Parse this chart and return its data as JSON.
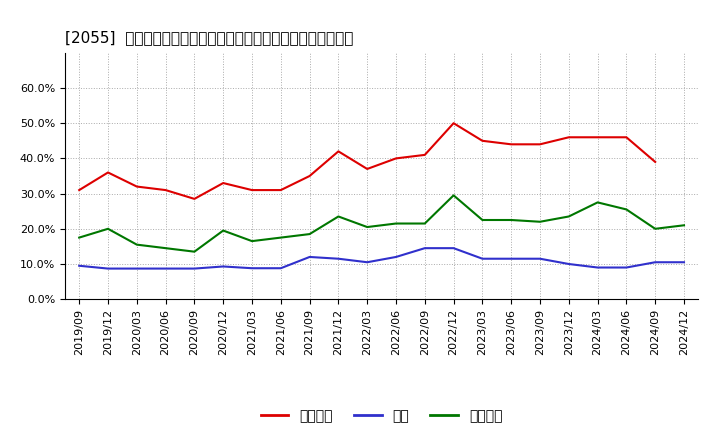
{
  "title": "[2055]  売上債権、在庫、買入債務の総資産に対する比率の推移",
  "ylim": [
    0.0,
    0.7
  ],
  "yticks": [
    0.0,
    0.1,
    0.2,
    0.3,
    0.4,
    0.5,
    0.6
  ],
  "ytick_labels": [
    "0.0%",
    "10.0%",
    "20.0%",
    "30.0%",
    "40.0%",
    "50.0%",
    "60.0%"
  ],
  "dates": [
    "2019/09",
    "2019/12",
    "2020/03",
    "2020/06",
    "2020/09",
    "2020/12",
    "2021/03",
    "2021/06",
    "2021/09",
    "2021/12",
    "2022/03",
    "2022/06",
    "2022/09",
    "2022/12",
    "2023/03",
    "2023/06",
    "2023/09",
    "2023/12",
    "2024/03",
    "2024/06",
    "2024/09",
    "2024/12"
  ],
  "売上債権": [
    0.31,
    0.36,
    0.32,
    0.31,
    0.285,
    0.33,
    0.31,
    0.31,
    0.35,
    0.42,
    0.37,
    0.4,
    0.41,
    0.5,
    0.45,
    0.44,
    0.44,
    0.46,
    0.46,
    0.46,
    0.39,
    null
  ],
  "在庫": [
    0.095,
    0.087,
    0.087,
    0.087,
    0.087,
    0.093,
    0.088,
    0.088,
    0.12,
    0.115,
    0.105,
    0.12,
    0.145,
    0.145,
    0.115,
    0.115,
    0.115,
    0.1,
    0.09,
    0.09,
    0.105,
    0.105
  ],
  "買入債務": [
    0.175,
    0.2,
    0.155,
    0.145,
    0.135,
    0.195,
    0.165,
    0.175,
    0.185,
    0.235,
    0.205,
    0.215,
    0.215,
    0.295,
    0.225,
    0.225,
    0.22,
    0.235,
    0.275,
    0.255,
    0.2,
    0.21
  ],
  "line_colors": {
    "売上債権": "#dd0000",
    "在庫": "#3030cc",
    "買入債務": "#007700"
  },
  "legend_labels": [
    "売上債権",
    "在庫",
    "買入債務"
  ],
  "background_color": "#ffffff",
  "plot_bg_color": "#ffffff",
  "grid_color": "#aaaaaa",
  "title_fontsize": 11,
  "tick_fontsize": 8,
  "legend_fontsize": 10
}
